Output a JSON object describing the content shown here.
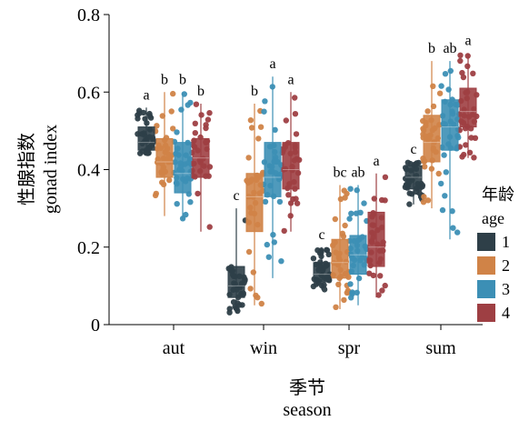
{
  "chart_data": {
    "type": "box",
    "title": "",
    "xlabel": [
      "季节",
      "season"
    ],
    "ylabel": [
      "性腺指数",
      "gonad index"
    ],
    "ylim": [
      0,
      0.8
    ],
    "yticks": [
      "0",
      "0.2",
      "0.4",
      "0.6",
      "0.8"
    ],
    "categories": [
      "aut",
      "win",
      "spr",
      "sum"
    ],
    "legend": {
      "title": [
        "年龄",
        "age"
      ],
      "position": "right",
      "items": [
        "1",
        "2",
        "3",
        "4"
      ]
    },
    "series": [
      {
        "name": "1",
        "color": "#2e3f48",
        "boxes": [
          {
            "category": "aut",
            "q1": 0.45,
            "median": 0.47,
            "q3": 0.51,
            "min": 0.44,
            "max": 0.56,
            "label": "a"
          },
          {
            "category": "win",
            "q1": 0.07,
            "median": 0.1,
            "q3": 0.15,
            "min": 0.03,
            "max": 0.3,
            "label": "c"
          },
          {
            "category": "spr",
            "q1": 0.11,
            "median": 0.13,
            "q3": 0.16,
            "min": 0.09,
            "max": 0.2,
            "label": "c"
          },
          {
            "category": "sum",
            "q1": 0.35,
            "median": 0.38,
            "q3": 0.41,
            "min": 0.31,
            "max": 0.42,
            "label": "c"
          }
        ]
      },
      {
        "name": "2",
        "color": "#d08347",
        "boxes": [
          {
            "category": "aut",
            "q1": 0.38,
            "median": 0.42,
            "q3": 0.48,
            "min": 0.28,
            "max": 0.6,
            "label": "b"
          },
          {
            "category": "win",
            "q1": 0.24,
            "median": 0.33,
            "q3": 0.39,
            "min": 0.05,
            "max": 0.57,
            "label": "b"
          },
          {
            "category": "spr",
            "q1": 0.12,
            "median": 0.16,
            "q3": 0.22,
            "min": 0.04,
            "max": 0.36,
            "label": "bc"
          },
          {
            "category": "sum",
            "q1": 0.42,
            "median": 0.47,
            "q3": 0.54,
            "min": 0.3,
            "max": 0.68,
            "label": "b"
          }
        ]
      },
      {
        "name": "3",
        "color": "#3c8fb5",
        "boxes": [
          {
            "category": "aut",
            "q1": 0.34,
            "median": 0.39,
            "q3": 0.47,
            "min": 0.27,
            "max": 0.6,
            "label": "b"
          },
          {
            "category": "win",
            "q1": 0.33,
            "median": 0.38,
            "q3": 0.47,
            "min": 0.12,
            "max": 0.64,
            "label": "a"
          },
          {
            "category": "spr",
            "q1": 0.13,
            "median": 0.18,
            "q3": 0.23,
            "min": 0.05,
            "max": 0.36,
            "label": "ab"
          },
          {
            "category": "sum",
            "q1": 0.45,
            "median": 0.51,
            "q3": 0.58,
            "min": 0.22,
            "max": 0.68,
            "label": "ab"
          }
        ]
      },
      {
        "name": "4",
        "color": "#9e3f43",
        "boxes": [
          {
            "category": "aut",
            "q1": 0.38,
            "median": 0.43,
            "q3": 0.48,
            "min": 0.24,
            "max": 0.57,
            "label": "b"
          },
          {
            "category": "win",
            "q1": 0.35,
            "median": 0.4,
            "q3": 0.47,
            "min": 0.24,
            "max": 0.6,
            "label": "a"
          },
          {
            "category": "spr",
            "q1": 0.15,
            "median": 0.2,
            "q3": 0.29,
            "min": 0.07,
            "max": 0.39,
            "label": "a"
          },
          {
            "category": "sum",
            "q1": 0.51,
            "median": 0.55,
            "q3": 0.61,
            "min": 0.43,
            "max": 0.7,
            "label": "a"
          }
        ]
      }
    ],
    "grid": false
  }
}
